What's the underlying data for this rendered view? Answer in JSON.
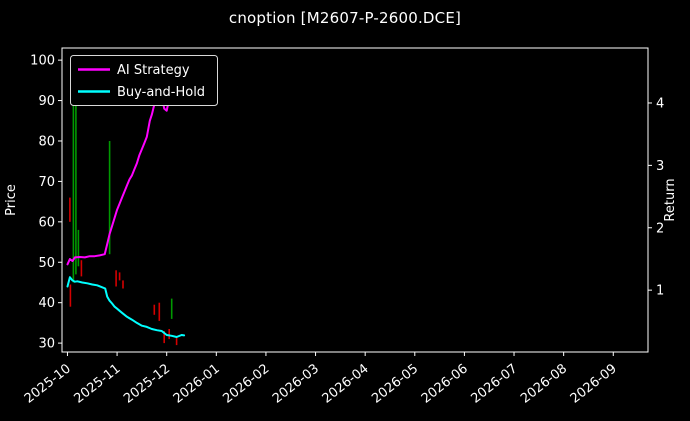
{
  "chart_data": {
    "type": "line",
    "title": "cnoption [M2607-P-2600.DCE]",
    "ylabel_left": "Price",
    "ylabel_right": "Return",
    "x_tick_labels": [
      "2025-10",
      "2025-11",
      "2025-12",
      "2026-01",
      "2026-02",
      "2026-03",
      "2026-04",
      "2026-05",
      "2026-06",
      "2026-07",
      "2026-08",
      "2026-09"
    ],
    "yticks_left": [
      30,
      40,
      50,
      60,
      70,
      80,
      90,
      100
    ],
    "yticks_right": [
      1,
      2,
      3,
      4
    ],
    "ylim_left": [
      27.8,
      103
    ],
    "xlim": [
      -0.11,
      11.7
    ],
    "return_axis": {
      "price_at_return_1": 43.1,
      "price_at_return_4": 89.4
    },
    "grid": false,
    "legend_position": "upper-left",
    "colors": {
      "background": "#000000",
      "text": "#ffffff",
      "ai_strategy": "#ff00ff",
      "buy_and_hold": "#00ffff",
      "candle_up": "#009900",
      "candle_down": "#d40000",
      "legend_border": "#d9d9d9"
    },
    "series": [
      {
        "name": "AI Strategy",
        "color": "#ff00ff",
        "x": [
          0.0,
          0.05,
          0.1,
          0.15,
          0.25,
          0.35,
          0.45,
          0.55,
          0.65,
          0.75,
          0.8,
          0.85,
          0.9,
          0.95,
          1.0,
          1.05,
          1.1,
          1.15,
          1.2,
          1.25,
          1.3,
          1.35,
          1.4,
          1.45,
          1.5,
          1.55,
          1.6,
          1.63,
          1.66,
          1.7,
          1.73,
          1.76,
          1.8,
          1.83,
          1.86,
          1.89,
          1.92,
          1.95,
          2.0,
          2.05,
          2.1,
          2.15,
          2.2,
          2.28,
          2.35
        ],
        "y": [
          49.5,
          50.8,
          50.3,
          51.2,
          51.3,
          51.2,
          51.5,
          51.5,
          51.7,
          52.0,
          54.5,
          57,
          59,
          61,
          63,
          64.5,
          66,
          67.5,
          69,
          70.5,
          71.5,
          73,
          74.5,
          76.5,
          78,
          79.5,
          81,
          83,
          85,
          86.5,
          88,
          89.5,
          91,
          93,
          91.5,
          92.5,
          90,
          88,
          87.5,
          90.5,
          91.5,
          90,
          90.5,
          90.8,
          91
        ]
      },
      {
        "name": "Buy-and-Hold",
        "color": "#00ffff",
        "x": [
          0.0,
          0.05,
          0.1,
          0.15,
          0.2,
          0.3,
          0.4,
          0.5,
          0.6,
          0.7,
          0.76,
          0.8,
          0.85,
          0.9,
          0.95,
          1.0,
          1.05,
          1.1,
          1.15,
          1.2,
          1.3,
          1.4,
          1.5,
          1.6,
          1.7,
          1.8,
          1.9,
          1.95,
          2.0,
          2.1,
          2.2,
          2.3,
          2.35
        ],
        "y": [
          44,
          46.3,
          45.5,
          45.2,
          45.3,
          45.0,
          44.8,
          44.5,
          44.3,
          43.8,
          43.5,
          41.5,
          40.5,
          39.8,
          39,
          38.5,
          38,
          37.5,
          37,
          36.5,
          35.8,
          35,
          34.3,
          34,
          33.5,
          33.2,
          33,
          32.5,
          32,
          31.8,
          31.5,
          32,
          31.9
        ]
      }
    ],
    "candles": [
      {
        "m": 0.05,
        "low": 60,
        "high": 66,
        "dir": "down"
      },
      {
        "m": 0.06,
        "low": 39,
        "high": 44.5,
        "dir": "down"
      },
      {
        "m": 0.12,
        "low": 45,
        "high": 91,
        "dir": "up"
      },
      {
        "m": 0.17,
        "low": 47,
        "high": 95.5,
        "dir": "up"
      },
      {
        "m": 0.22,
        "low": 49,
        "high": 58,
        "dir": "up"
      },
      {
        "m": 0.28,
        "low": 46.5,
        "high": 50.5,
        "dir": "down"
      },
      {
        "m": 0.85,
        "low": 52,
        "high": 80,
        "dir": "up"
      },
      {
        "m": 0.98,
        "low": 44,
        "high": 48,
        "dir": "down"
      },
      {
        "m": 1.05,
        "low": 45.5,
        "high": 47.5,
        "dir": "down"
      },
      {
        "m": 1.12,
        "low": 43.5,
        "high": 45.5,
        "dir": "down"
      },
      {
        "m": 1.75,
        "low": 37,
        "high": 39.5,
        "dir": "down"
      },
      {
        "m": 1.85,
        "low": 35.5,
        "high": 40,
        "dir": "down"
      },
      {
        "m": 1.95,
        "low": 30,
        "high": 33,
        "dir": "down"
      },
      {
        "m": 2.05,
        "low": 31,
        "high": 33.5,
        "dir": "down"
      },
      {
        "m": 2.1,
        "low": 36,
        "high": 41,
        "dir": "up"
      },
      {
        "m": 2.2,
        "low": 29.5,
        "high": 31.5,
        "dir": "down"
      }
    ]
  }
}
